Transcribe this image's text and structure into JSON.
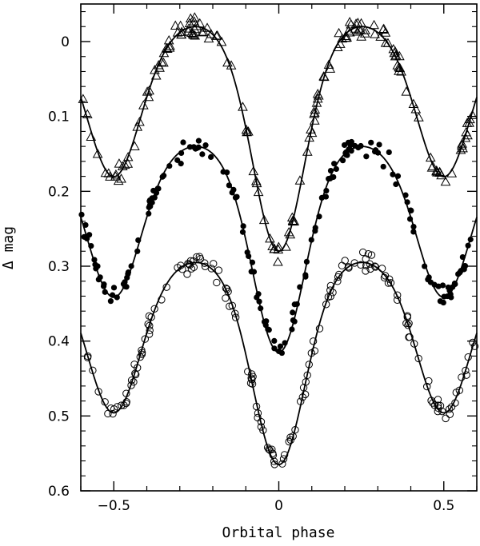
{
  "chart_data": {
    "type": "scatter",
    "title": "",
    "xlabel": "Orbital phase",
    "ylabel": "Δ mag",
    "xlim": [
      -0.6,
      0.6
    ],
    "ylim": [
      0.6,
      -0.05
    ],
    "y_inverted": true,
    "x_ticks": [
      -0.5,
      0,
      0.5
    ],
    "x_tick_labels": [
      "−0.5",
      "0",
      "0.5"
    ],
    "y_ticks": [
      0,
      0.1,
      0.2,
      0.3,
      0.4,
      0.5,
      0.6
    ],
    "y_tick_labels": [
      "0",
      "0.1",
      "0.2",
      "0.3",
      "0.4",
      "0.5",
      "0.6"
    ],
    "grid": false,
    "legend": "none",
    "series": [
      {
        "marker": "open-triangle",
        "color": "#000000",
        "model": {
          "offset": 0.0,
          "max_level": -0.02,
          "primary_min": 0.28,
          "secondary_min": 0.16
        },
        "scatter": 0.006
      },
      {
        "marker": "filled-circle",
        "color": "#000000",
        "model": {
          "offset": 0.0,
          "max_level": 0.14,
          "primary_min": 0.415,
          "secondary_min": 0.325
        },
        "scatter": 0.007
      },
      {
        "marker": "open-circle",
        "color": "#000000",
        "model": {
          "offset": 0.0,
          "max_level": 0.295,
          "primary_min": 0.565,
          "secondary_min": 0.48
        },
        "scatter": 0.006
      }
    ]
  }
}
